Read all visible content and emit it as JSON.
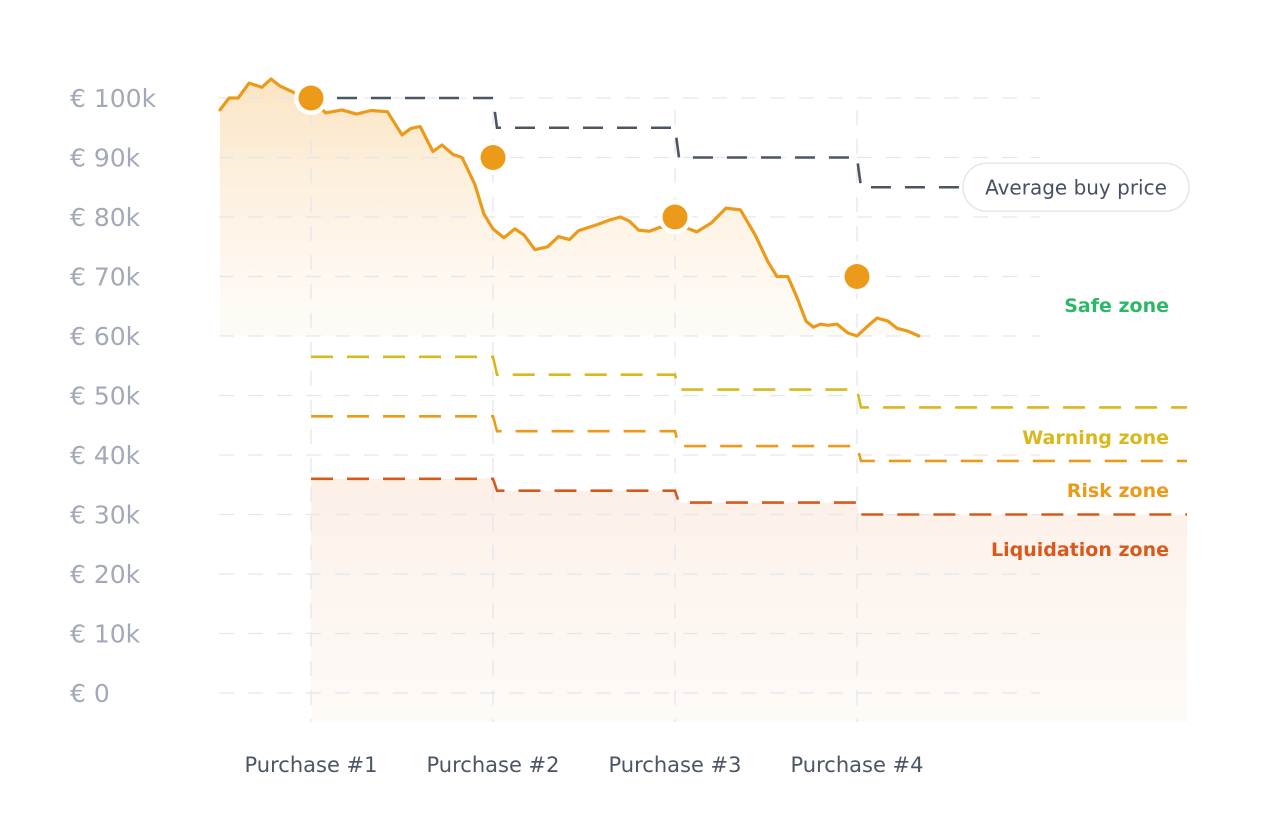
{
  "chart_data": {
    "type": "line",
    "y_axis": {
      "ylim": [
        0,
        100000
      ],
      "tick_labels": [
        "€ 100k",
        "€ 90k",
        "€ 80k",
        "€ 70k",
        "€ 60k",
        "€ 50k",
        "€ 40k",
        "€ 30k",
        "€ 20k",
        "€ 10k",
        "€ 0"
      ],
      "tick_values": [
        100000,
        90000,
        80000,
        70000,
        60000,
        50000,
        40000,
        30000,
        20000,
        10000,
        0
      ],
      "grid": true
    },
    "x_axis": {
      "categories": [
        "Purchase #1",
        "Purchase #2",
        "Purchase #3",
        "Purchase #4"
      ]
    },
    "price_series": {
      "color": "#ec9a1a",
      "x": [
        -0.5,
        -0.45,
        -0.4,
        -0.34,
        -0.27,
        -0.22,
        -0.17,
        -0.1,
        -0.04,
        0.0,
        0.08,
        0.17,
        0.25,
        0.33,
        0.42,
        0.5,
        0.55,
        0.6,
        0.67,
        0.72,
        0.78,
        0.83,
        0.9,
        0.95,
        1.0,
        1.06,
        1.12,
        1.17,
        1.23,
        1.3,
        1.36,
        1.42,
        1.47,
        1.53,
        1.58,
        1.64,
        1.7,
        1.75,
        1.8,
        1.86,
        1.92,
        2.0,
        2.06,
        2.12,
        2.2,
        2.28,
        2.36,
        2.44,
        2.51,
        2.56,
        2.62,
        2.67,
        2.72,
        2.76,
        2.8,
        2.84,
        2.89,
        2.95,
        3.0,
        3.06,
        3.11,
        3.17,
        3.22,
        3.28,
        3.34
      ],
      "y": [
        98000,
        100000,
        100000,
        102500,
        101800,
        103200,
        102000,
        101000,
        100000,
        100000,
        97500,
        98000,
        97300,
        97900,
        97700,
        93800,
        94900,
        95200,
        91000,
        92100,
        90500,
        90000,
        85500,
        80500,
        78000,
        76500,
        78000,
        77000,
        74500,
        75000,
        76700,
        76200,
        77700,
        78300,
        78800,
        79500,
        80000,
        79300,
        77800,
        77600,
        78300,
        78000,
        78200,
        77500,
        79000,
        81500,
        81200,
        77000,
        72500,
        70000,
        70000,
        66500,
        62500,
        61500,
        62000,
        61800,
        62000,
        60500,
        60000,
        61700,
        63000,
        62500,
        61300,
        60800,
        60000
      ]
    },
    "purchase_points": [
      {
        "label": "Purchase #1",
        "x": 0,
        "y": 100000
      },
      {
        "label": "Purchase #2",
        "x": 1,
        "y": 90000
      },
      {
        "label": "Purchase #3",
        "x": 2,
        "y": 80000
      },
      {
        "label": "Purchase #4",
        "x": 3,
        "y": 70000
      }
    ],
    "average_buy_price": {
      "label": "Average buy price",
      "color": "#4b5563",
      "values": [
        100000,
        95000,
        90000,
        85000
      ]
    },
    "thresholds": [
      {
        "name": "Warning zone",
        "color": "#d9b81c",
        "values": [
          56500,
          53500,
          51000,
          48000
        ]
      },
      {
        "name": "Risk zone",
        "color": "#ec9a1a",
        "values": [
          46500,
          44000,
          41500,
          39000
        ]
      },
      {
        "name": "Liquidation zone",
        "color": "#d9581c",
        "values": [
          36000,
          34000,
          32000,
          30000
        ]
      }
    ],
    "zones": [
      {
        "name": "Safe zone",
        "color": "#2cb866"
      },
      {
        "name": "Warning zone",
        "color": "#d9b81c"
      },
      {
        "name": "Risk zone",
        "color": "#ec9a1a"
      },
      {
        "name": "Liquidation zone",
        "color": "#d9581c"
      }
    ]
  }
}
